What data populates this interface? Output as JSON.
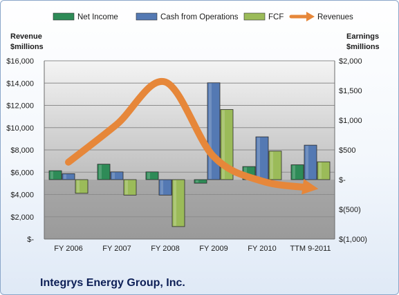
{
  "company_name": "Integrys Energy Group, Inc.",
  "colors": {
    "net_income": "#2e8b57",
    "cash_from_operations": "#5479b3",
    "fcf": "#9bbb59",
    "revenues": "#e6873a"
  },
  "chart_data": {
    "type": "bar",
    "categories": [
      "FY 2006",
      "FY 2007",
      "FY 2008",
      "FY 2009",
      "FY 2010",
      "TTM 9-2011"
    ],
    "y_left_label": [
      "Revenue",
      "$millions"
    ],
    "y_right_label": [
      "Earnings",
      "$millions"
    ],
    "y_left_ticks": [
      "$-",
      "$2,000",
      "$4,000",
      "$6,000",
      "$8,000",
      "$10,000",
      "$12,000",
      "$14,000",
      "$16,000"
    ],
    "y_right_ticks": [
      "$(1,000)",
      "$(500)",
      "$-",
      "$500",
      "$1,000",
      "$1,500",
      "$2,000"
    ],
    "ylim_left": [
      0,
      16000
    ],
    "ylim_right": [
      -1000,
      2000
    ],
    "grid": true,
    "legend_position": "top",
    "series": [
      {
        "name": "Net Income",
        "axis": "right",
        "type": "bar",
        "values": [
          150,
          260,
          130,
          -60,
          220,
          250
        ]
      },
      {
        "name": "Cash from Operations",
        "axis": "right",
        "type": "bar",
        "values": [
          100,
          130,
          -260,
          1630,
          720,
          580
        ]
      },
      {
        "name": "FCF",
        "axis": "right",
        "type": "bar",
        "values": [
          -230,
          -260,
          -790,
          1180,
          480,
          300
        ]
      },
      {
        "name": "Revenues",
        "axis": "left",
        "type": "line",
        "values": [
          6900,
          10300,
          14100,
          7400,
          5200,
          4600
        ]
      }
    ]
  }
}
